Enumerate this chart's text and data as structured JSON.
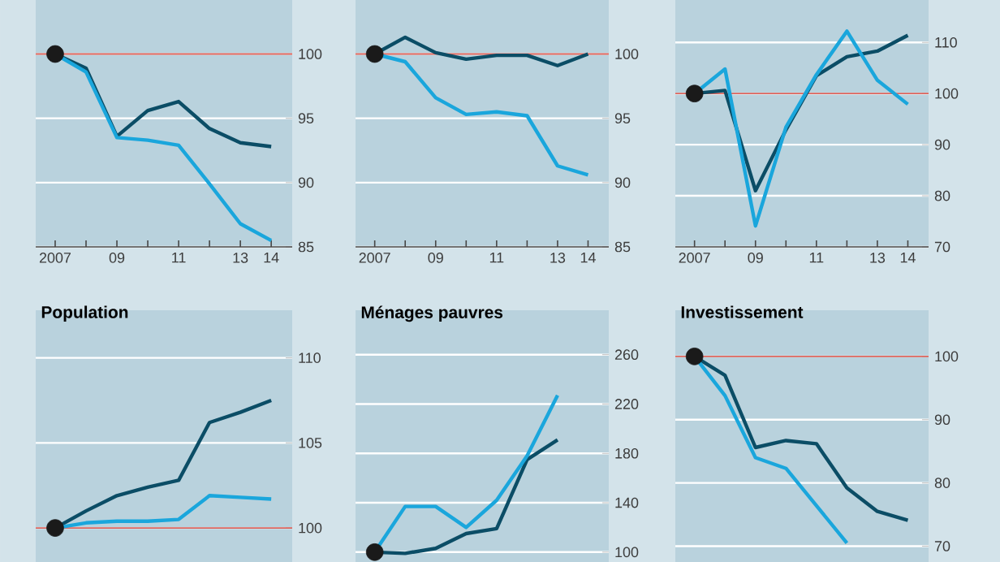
{
  "chart_data": [
    {
      "type": "line",
      "x": [
        2007,
        2008,
        2009,
        2010,
        2011,
        2012,
        2013,
        2014
      ],
      "xlim": [
        2006.37,
        2014.68
      ],
      "xticks": [
        {
          "value": 2007,
          "label": "2007"
        },
        {
          "value": 2008,
          "label": null
        },
        {
          "value": 2009,
          "label": "09"
        },
        {
          "value": 2010,
          "label": null
        },
        {
          "value": 2011,
          "label": "11"
        },
        {
          "value": 2012,
          "label": null
        },
        {
          "value": 2013,
          "label": "13"
        },
        {
          "value": 2014,
          "label": "14"
        }
      ],
      "ylim": [
        85,
        104.2
      ],
      "yticks": [
        85,
        90,
        95,
        100
      ],
      "grid": "y",
      "line_style": "solid",
      "ref_lines": [
        {
          "axis": "y",
          "value": 100,
          "color": "#d9625a"
        }
      ],
      "series": [
        {
          "color": "#0b4d66",
          "values": [
            100,
            98.9,
            93.6,
            95.6,
            96.3,
            94.2,
            93.1,
            92.8
          ]
        },
        {
          "color": "#1aa6dc",
          "values": [
            100,
            98.6,
            93.5,
            93.3,
            92.9,
            89.9,
            86.8,
            85.5
          ]
        },
        {
          "type": "scatter",
          "color": "#1a1a1a",
          "values": [
            100,
            null,
            null,
            null,
            null,
            null,
            null,
            null
          ]
        }
      ]
    },
    {
      "type": "line",
      "x": [
        2007,
        2008,
        2009,
        2010,
        2011,
        2012,
        2013,
        2014
      ],
      "xlim": [
        2006.37,
        2014.68
      ],
      "xticks": [
        {
          "value": 2007,
          "label": "2007"
        },
        {
          "value": 2008,
          "label": null
        },
        {
          "value": 2009,
          "label": "09"
        },
        {
          "value": 2010,
          "label": null
        },
        {
          "value": 2011,
          "label": "11"
        },
        {
          "value": 2012,
          "label": null
        },
        {
          "value": 2013,
          "label": "13"
        },
        {
          "value": 2014,
          "label": "14"
        }
      ],
      "ylim": [
        85,
        104.2
      ],
      "yticks": [
        85,
        90,
        95,
        100
      ],
      "grid": "y",
      "line_style": "solid",
      "ref_lines": [
        {
          "axis": "y",
          "value": 100,
          "color": "#d9625a"
        }
      ],
      "series": [
        {
          "color": "#0b4d66",
          "values": [
            100,
            101.3,
            100.1,
            99.6,
            99.9,
            99.9,
            99.1,
            100
          ]
        },
        {
          "color": "#1aa6dc",
          "values": [
            100,
            99.4,
            96.6,
            95.3,
            95.5,
            95.2,
            91.3,
            90.6
          ]
        },
        {
          "type": "scatter",
          "color": "#1a1a1a",
          "values": [
            100,
            null,
            null,
            null,
            null,
            null,
            null,
            null
          ]
        }
      ]
    },
    {
      "type": "line",
      "x": [
        2007,
        2008,
        2009,
        2010,
        2011,
        2012,
        2013,
        2014
      ],
      "xlim": [
        2006.37,
        2014.68
      ],
      "xticks": [
        {
          "value": 2007,
          "label": "2007"
        },
        {
          "value": 2008,
          "label": null
        },
        {
          "value": 2009,
          "label": "09"
        },
        {
          "value": 2010,
          "label": null
        },
        {
          "value": 2011,
          "label": "11"
        },
        {
          "value": 2012,
          "label": null
        },
        {
          "value": 2013,
          "label": "13"
        },
        {
          "value": 2014,
          "label": "14"
        }
      ],
      "ylim": [
        70,
        118.3
      ],
      "yticks": [
        70,
        80,
        90,
        100,
        110
      ],
      "grid": "y",
      "line_style": "solid",
      "ref_lines": [
        {
          "axis": "y",
          "value": 100,
          "color": "#d9625a"
        }
      ],
      "series": [
        {
          "color": "#0b4d66",
          "values": [
            100,
            100.6,
            81,
            92.9,
            103.5,
            107.2,
            108.3,
            111.4
          ]
        },
        {
          "color": "#1aa6dc",
          "values": [
            100,
            104.8,
            74.1,
            93.4,
            103.7,
            112.2,
            102.6,
            97.9
          ]
        },
        {
          "type": "scatter",
          "color": "#1a1a1a",
          "values": [
            100,
            null,
            null,
            null,
            null,
            null,
            null,
            null
          ]
        }
      ]
    },
    {
      "type": "line",
      "title": "Population",
      "categories": [
        null,
        null,
        null,
        null,
        null,
        null,
        null,
        null
      ],
      "ylim": [
        98,
        112.8
      ],
      "yticks": [
        100,
        105,
        110
      ],
      "grid": "y",
      "line_style": "solid",
      "tick_labels": "y",
      "ref_lines": [
        {
          "axis": "y",
          "value": 100,
          "color": "#d9625a"
        }
      ],
      "series": [
        {
          "color": "#0b4d66",
          "values": [
            100,
            101,
            101.9,
            102.4,
            102.8,
            106.2,
            106.8,
            107.5
          ]
        },
        {
          "color": "#1aa6dc",
          "values": [
            100,
            100.3,
            100.4,
            100.4,
            100.5,
            101.9,
            101.8,
            101.7
          ]
        },
        {
          "type": "scatter",
          "color": "#1a1a1a",
          "values": [
            100,
            null,
            null,
            null,
            null,
            null,
            null,
            null
          ]
        }
      ]
    },
    {
      "type": "line",
      "title": "Ménages pauvres",
      "categories": [
        null,
        null,
        null,
        null,
        null,
        null,
        null,
        null
      ],
      "ylim": [
        92,
        296
      ],
      "yticks": [
        100,
        140,
        180,
        220,
        260
      ],
      "grid": "y",
      "line_style": "solid",
      "tick_labels": "y",
      "series": [
        {
          "color": "#0b4d66",
          "values": [
            100,
            99,
            103,
            115,
            119,
            175,
            191,
            null
          ]
        },
        {
          "color": "#1aa6dc",
          "values": [
            100,
            137,
            137,
            120,
            142,
            178,
            227,
            null
          ]
        },
        {
          "type": "scatter",
          "color": "#1a1a1a",
          "values": [
            100,
            null,
            null,
            null,
            null,
            null,
            null,
            null
          ]
        }
      ]
    },
    {
      "type": "line",
      "title": "Investissement",
      "categories": [
        null,
        null,
        null,
        null,
        null,
        null,
        null,
        null
      ],
      "ylim": [
        67.5,
        107.3
      ],
      "yticks": [
        70,
        80,
        90,
        100
      ],
      "grid": "y",
      "line_style": "solid",
      "tick_labels": "y",
      "ref_lines": [
        {
          "axis": "y",
          "value": 100,
          "color": "#d9625a"
        }
      ],
      "series": [
        {
          "color": "#0b4d66",
          "values": [
            100,
            97,
            85.6,
            86.7,
            86.2,
            79.2,
            75.5,
            74.1
          ]
        },
        {
          "color": "#1aa6dc",
          "values": [
            100,
            93.8,
            84,
            82.3,
            76.4,
            70.5,
            null,
            null
          ]
        },
        {
          "type": "scatter",
          "color": "#1a1a1a",
          "values": [
            100,
            null,
            null,
            null,
            null,
            null,
            null,
            null
          ]
        }
      ]
    }
  ]
}
